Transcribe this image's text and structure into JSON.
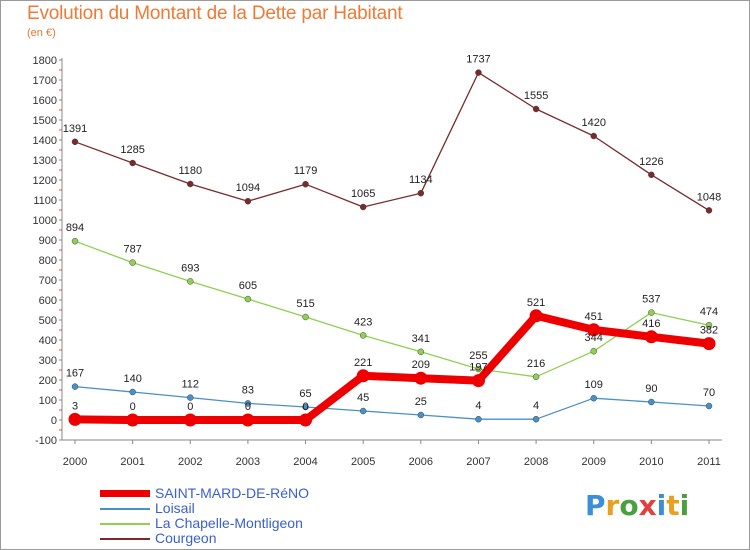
{
  "header": {
    "title": "Evolution du Montant de la Dette par Habitant",
    "subtitle": "(en €)"
  },
  "logo": {
    "text": "Proxiti",
    "letters": [
      {
        "ch": "P",
        "color": "#3a8fd8"
      },
      {
        "ch": "r",
        "color": "#e8a020"
      },
      {
        "ch": "o",
        "color": "#4aa040"
      },
      {
        "ch": "x",
        "color": "#e04040"
      },
      {
        "ch": "i",
        "color": "#3a8fd8"
      },
      {
        "ch": "t",
        "color": "#e8a020"
      },
      {
        "ch": "i",
        "color": "#4aa040"
      }
    ]
  },
  "chart_data": {
    "type": "line",
    "title": "Evolution du Montant de la Dette par Habitant",
    "subtitle": "(en €)",
    "x": [
      "2000",
      "2001",
      "2002",
      "2003",
      "2004",
      "2005",
      "2006",
      "2007",
      "2008",
      "2009",
      "2010",
      "2011"
    ],
    "yticks": [
      -100,
      0,
      100,
      200,
      300,
      400,
      500,
      600,
      700,
      800,
      900,
      1000,
      1100,
      1200,
      1300,
      1400,
      1500,
      1600,
      1700,
      1800
    ],
    "ylim": [
      -100,
      1800
    ],
    "grid": false,
    "legend_position": "bottom-left",
    "series": [
      {
        "name": "SAINT-MARD-DE-RéNO",
        "color": "#ee0000",
        "values": [
          3,
          0,
          0,
          0,
          0,
          221,
          209,
          197,
          521,
          451,
          416,
          382
        ],
        "labels": [
          "3",
          "0",
          "0",
          "0",
          "0",
          "221",
          "209",
          "197",
          "521",
          "451",
          "416",
          "382"
        ]
      },
      {
        "name": "Loisail",
        "color": "#4a90c8",
        "values": [
          167,
          140,
          112,
          83,
          65,
          45,
          25,
          4,
          4,
          109,
          90,
          70
        ],
        "labels": [
          "167",
          "140",
          "112",
          "83",
          "65",
          "45",
          "25",
          "4",
          "4",
          "109",
          "90",
          "70"
        ]
      },
      {
        "name": "La Chapelle-Montligeon",
        "color": "#8fd050",
        "values": [
          894,
          787,
          693,
          605,
          515,
          423,
          341,
          255,
          216,
          344,
          537,
          474
        ],
        "labels": [
          "894",
          "787",
          "693",
          "605",
          "515",
          "423",
          "341",
          "255",
          "216",
          "344",
          "537",
          "474"
        ]
      },
      {
        "name": "Courgeon",
        "color": "#7a2a2a",
        "values": [
          1391,
          1285,
          1180,
          1094,
          1179,
          1065,
          1134,
          1737,
          1555,
          1420,
          1226,
          1048
        ],
        "labels": [
          "1391",
          "1285",
          "1180",
          "1094",
          "1179",
          "1065",
          "1134",
          "1737",
          "1555",
          "1420",
          "1226",
          "1048"
        ]
      }
    ]
  }
}
